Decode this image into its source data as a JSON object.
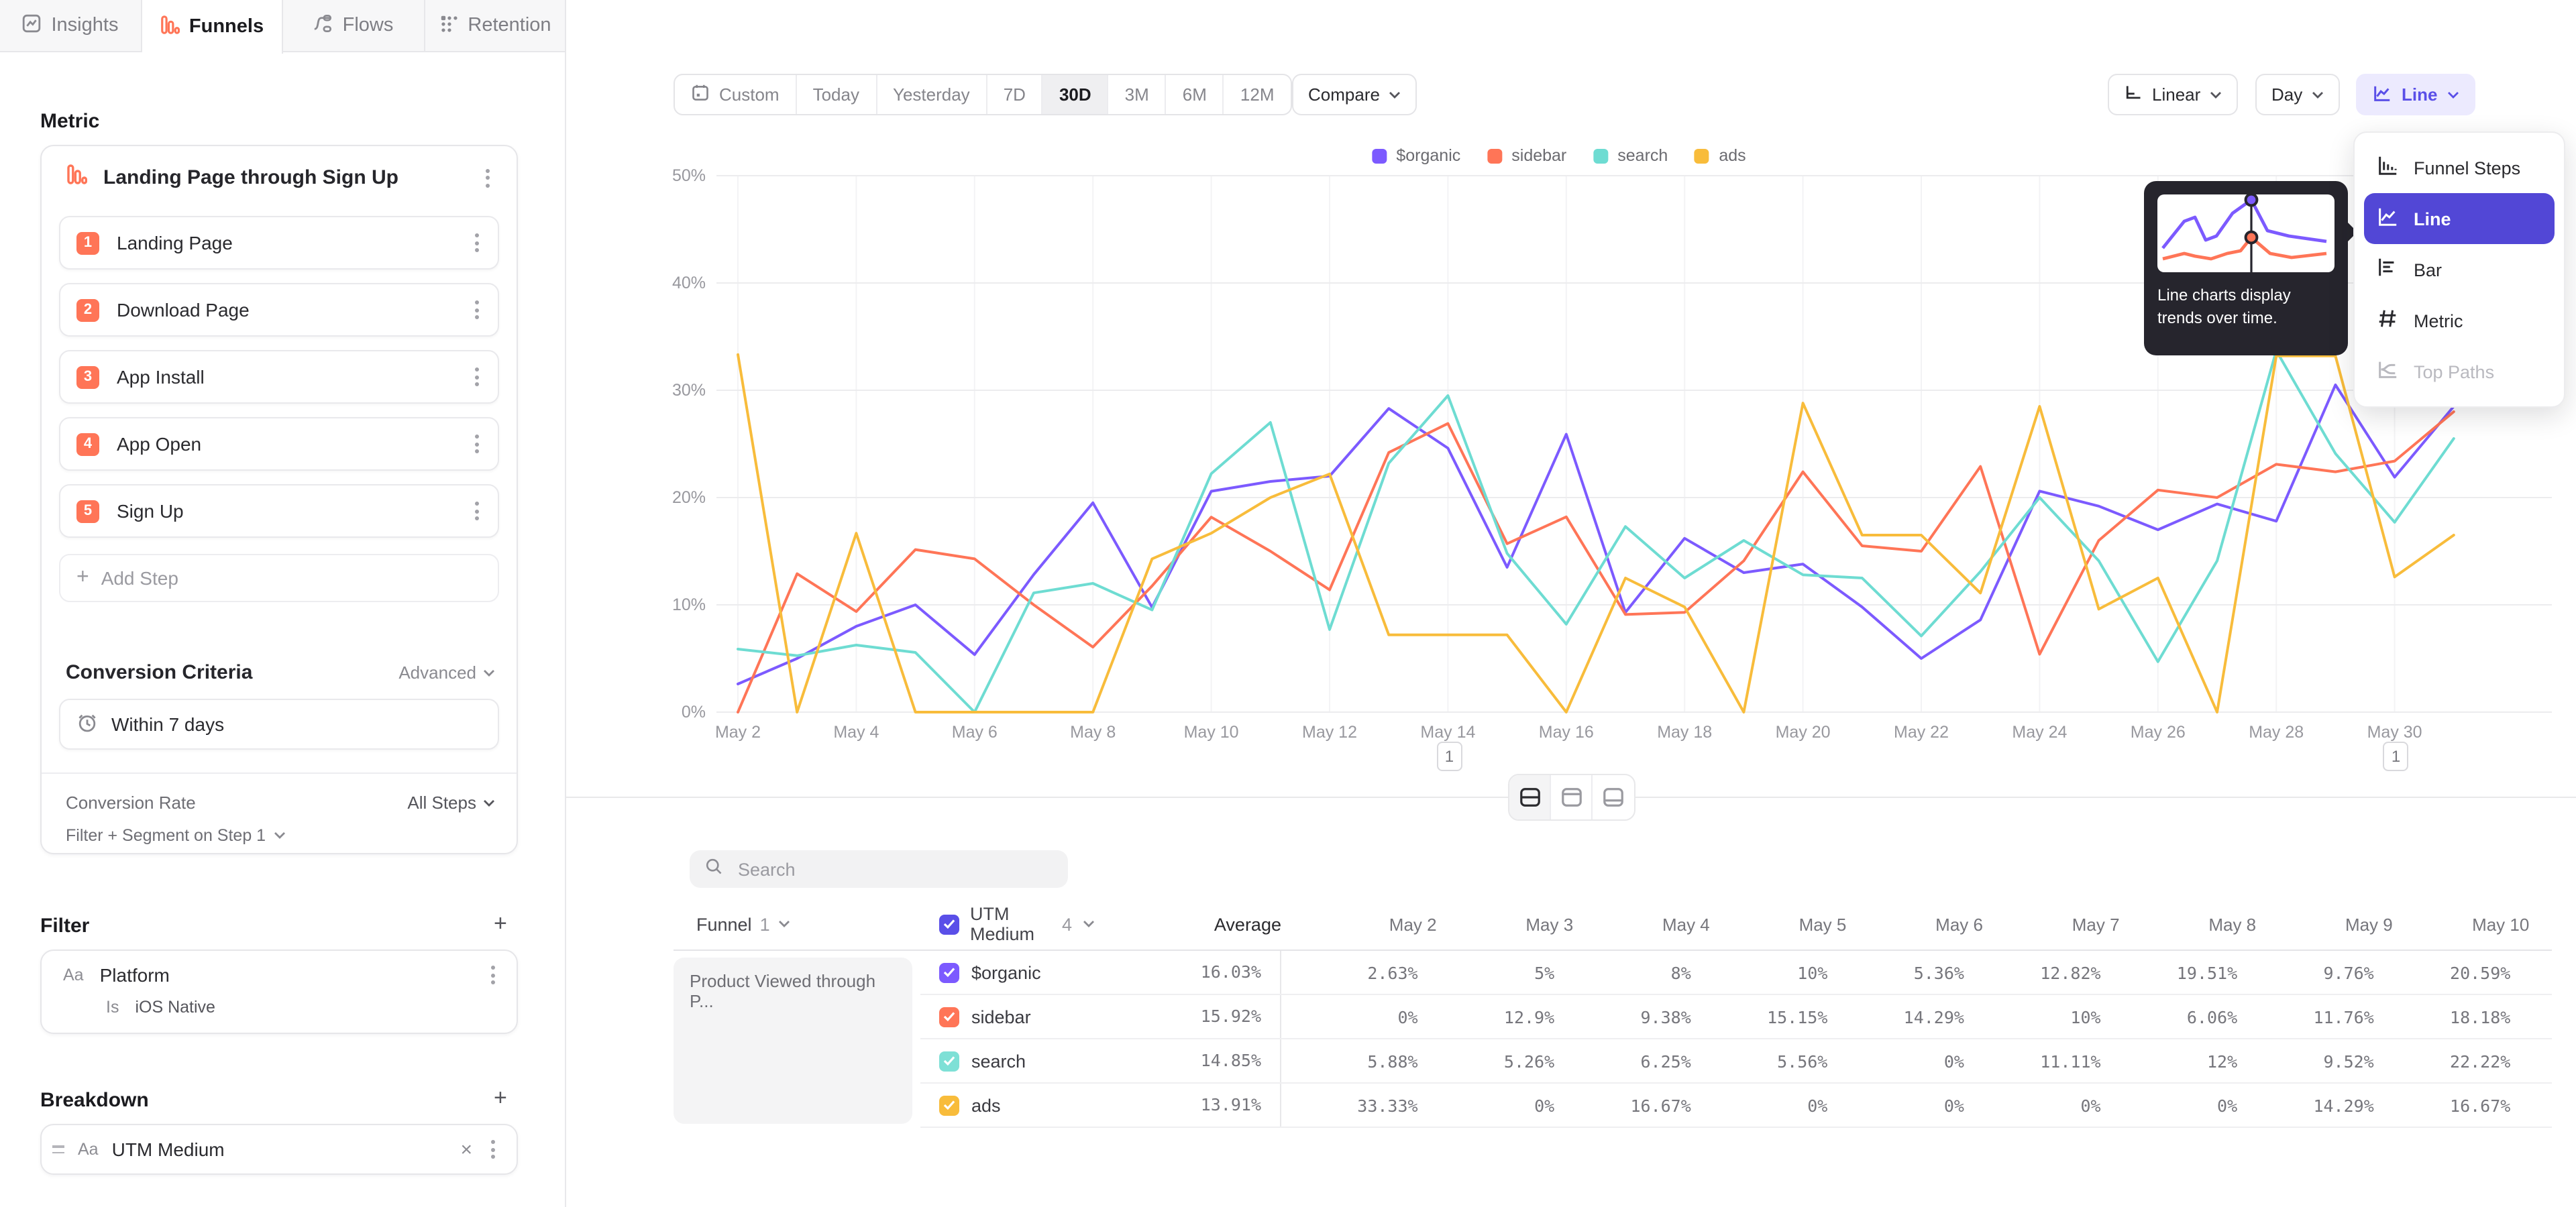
{
  "tabs": {
    "items": [
      {
        "label": "Insights",
        "active": false
      },
      {
        "label": "Funnels",
        "active": true
      },
      {
        "label": "Flows",
        "active": false
      },
      {
        "label": "Retention",
        "active": false
      }
    ]
  },
  "sidebar": {
    "metric_heading": "Metric",
    "funnel": {
      "title": "Landing Page through Sign Up",
      "steps": [
        {
          "num": "1",
          "label": "Landing Page"
        },
        {
          "num": "2",
          "label": "Download Page"
        },
        {
          "num": "3",
          "label": "App Install"
        },
        {
          "num": "4",
          "label": "App Open"
        },
        {
          "num": "5",
          "label": "Sign Up"
        }
      ],
      "add_step_label": "Add Step"
    },
    "conversion": {
      "heading": "Conversion Criteria",
      "advanced_label": "Advanced",
      "window_label": "Within 7 days",
      "rate_label": "Conversion Rate",
      "rate_value": "All Steps",
      "filter_segment_label": "Filter + Segment on Step 1"
    },
    "filter": {
      "heading": "Filter",
      "type_badge": "Aa",
      "property": "Platform",
      "operator": "Is",
      "value": "iOS Native"
    },
    "breakdown": {
      "heading": "Breakdown",
      "type_badge": "Aa",
      "property": "UTM Medium"
    }
  },
  "toolbar": {
    "date_buttons": [
      "Custom",
      "Today",
      "Yesterday",
      "7D",
      "30D",
      "3M",
      "6M",
      "12M"
    ],
    "active_range": "30D",
    "compare_label": "Compare",
    "scale_label": "Linear",
    "interval_label": "Day",
    "chart_type_label": "Line"
  },
  "chart_menu": {
    "items": [
      {
        "label": "Funnel Steps",
        "selected": false,
        "disabled": false
      },
      {
        "label": "Line",
        "selected": true,
        "disabled": false
      },
      {
        "label": "Bar",
        "selected": false,
        "disabled": false
      },
      {
        "label": "Metric",
        "selected": false,
        "disabled": false
      },
      {
        "label": "Top Paths",
        "selected": false,
        "disabled": true
      }
    ],
    "tooltip_text": "Line charts display trends over time.",
    "tooltip_preview": {
      "purple": [
        [
          4,
          40
        ],
        [
          20,
          20
        ],
        [
          28,
          17
        ],
        [
          36,
          34
        ],
        [
          44,
          31
        ],
        [
          56,
          14
        ],
        [
          70,
          4
        ],
        [
          82,
          27
        ],
        [
          98,
          31
        ],
        [
          126,
          35
        ]
      ],
      "red": [
        [
          4,
          48
        ],
        [
          20,
          44
        ],
        [
          28,
          46
        ],
        [
          40,
          48
        ],
        [
          52,
          44
        ],
        [
          62,
          42
        ],
        [
          70,
          32
        ],
        [
          84,
          44
        ],
        [
          100,
          47
        ],
        [
          126,
          44
        ]
      ],
      "marker_x": 70
    }
  },
  "chart_data": {
    "type": "line",
    "title": "",
    "xlabel": "",
    "ylabel": "",
    "ylim": [
      0,
      50
    ],
    "yticks": [
      "0%",
      "10%",
      "20%",
      "30%",
      "40%",
      "50%"
    ],
    "grid": true,
    "legend_position": "top",
    "x": [
      "May 2",
      "May 3",
      "May 4",
      "May 5",
      "May 6",
      "May 7",
      "May 8",
      "May 9",
      "May 10",
      "May 11",
      "May 12",
      "May 13",
      "May 14",
      "May 15",
      "May 16",
      "May 17",
      "May 18",
      "May 19",
      "May 20",
      "May 21",
      "May 22",
      "May 23",
      "May 24",
      "May 25",
      "May 26",
      "May 27",
      "May 28",
      "May 29",
      "May 30",
      "May 31"
    ],
    "x_tick_labels": [
      "May 2",
      "May 4",
      "May 6",
      "May 8",
      "May 10",
      "May 12",
      "May 14",
      "May 16",
      "May 18",
      "May 20",
      "May 22",
      "May 24",
      "May 26",
      "May 28",
      "May 30"
    ],
    "series": [
      {
        "name": "$organic",
        "color": "#7C5AFF",
        "values": [
          2.63,
          5,
          8,
          10,
          5.36,
          12.82,
          19.51,
          9.76,
          20.59,
          21.5,
          22,
          28.3,
          24.6,
          13.5,
          25.9,
          9.3,
          16.2,
          13,
          13.8,
          9.8,
          5,
          8.6,
          20.6,
          19.2,
          17,
          19.4,
          17.8,
          30.5,
          21.9,
          28.5
        ]
      },
      {
        "name": "sidebar",
        "color": "#FF7557",
        "values": [
          0,
          12.9,
          9.38,
          15.15,
          14.29,
          10,
          6.06,
          11.76,
          18.18,
          15,
          11.4,
          24.2,
          26.9,
          15.7,
          18.2,
          9.1,
          9.3,
          14.1,
          22.4,
          15.5,
          15,
          22.9,
          5.4,
          16,
          20.7,
          20,
          23.1,
          22.4,
          23.4,
          28
        ]
      },
      {
        "name": "search",
        "color": "#6EDCD2",
        "values": [
          5.88,
          5.26,
          6.25,
          5.56,
          0,
          11.11,
          12,
          9.52,
          22.22,
          27,
          7.7,
          23.2,
          29.5,
          14.8,
          8.2,
          17.3,
          12.5,
          16,
          12.8,
          12.5,
          7.1,
          13.1,
          20,
          14.1,
          4.7,
          14.1,
          33.7,
          24.1,
          17.7,
          25.5
        ]
      },
      {
        "name": "ads",
        "color": "#F8BC3B",
        "values": [
          33.33,
          0,
          16.67,
          0,
          0,
          0,
          0,
          14.29,
          16.67,
          20,
          22.2,
          7.2,
          7.2,
          7.2,
          0,
          12.5,
          9.8,
          0,
          28.8,
          16.5,
          16.5,
          11.1,
          28.5,
          9.6,
          12.5,
          0,
          33.2,
          33.2,
          12.6,
          16.5
        ]
      }
    ],
    "annotations": [
      {
        "x": "May 14",
        "label": "1"
      },
      {
        "x": "May 30",
        "label": "1"
      }
    ]
  },
  "view_toggle": {
    "active_index": 0
  },
  "table": {
    "search_placeholder": "Search",
    "funnel_header": "Funnel",
    "funnel_count": "1",
    "breakdown_header": "UTM Medium",
    "breakdown_count": "4",
    "average_header": "Average",
    "date_headers": [
      "May 2",
      "May 3",
      "May 4",
      "May 5",
      "May 6",
      "May 7",
      "May 8",
      "May 9",
      "May 10"
    ],
    "funnel_cell": "Product Viewed through P...",
    "rows": [
      {
        "name": "$organic",
        "color": "#7C5AFF",
        "average": "16.03%",
        "values": [
          "2.63%",
          "5%",
          "8%",
          "10%",
          "5.36%",
          "12.82%",
          "19.51%",
          "9.76%",
          "20.59%"
        ]
      },
      {
        "name": "sidebar",
        "color": "#FF7557",
        "average": "15.92%",
        "values": [
          "0%",
          "12.9%",
          "9.38%",
          "15.15%",
          "14.29%",
          "10%",
          "6.06%",
          "11.76%",
          "18.18%"
        ]
      },
      {
        "name": "search",
        "color": "#7EE0D6",
        "average": "14.85%",
        "values": [
          "5.88%",
          "5.26%",
          "6.25%",
          "5.56%",
          "0%",
          "11.11%",
          "12%",
          "9.52%",
          "22.22%"
        ]
      },
      {
        "name": "ads",
        "color": "#F8BC3B",
        "average": "13.91%",
        "values": [
          "33.33%",
          "0%",
          "16.67%",
          "0%",
          "0%",
          "0%",
          "0%",
          "14.29%",
          "16.67%"
        ]
      }
    ]
  }
}
